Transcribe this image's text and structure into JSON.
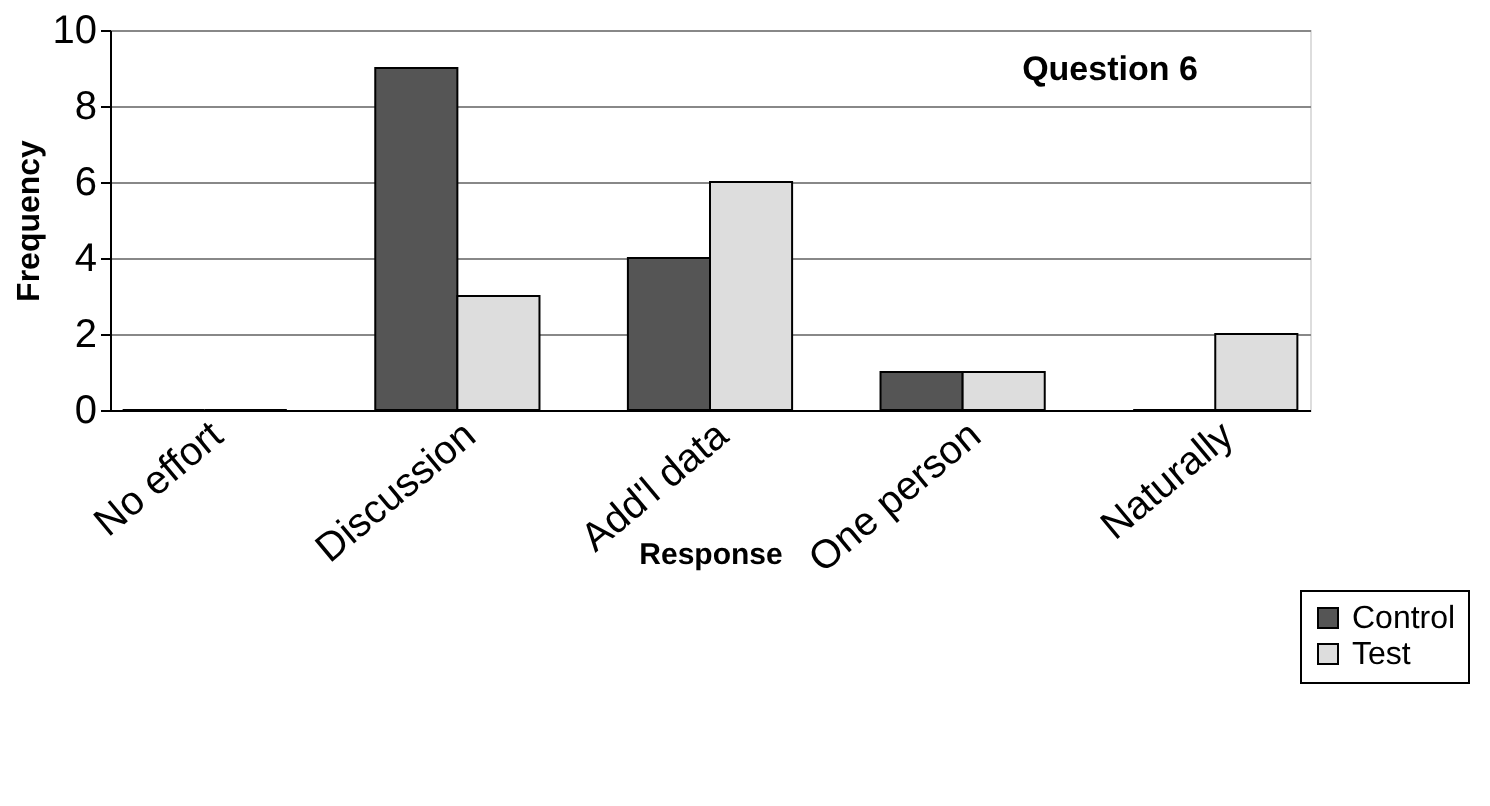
{
  "chart_data": {
    "type": "bar",
    "title": "Question 6",
    "xlabel": "Response",
    "ylabel": "Frequency",
    "categories": [
      "No effort",
      "Discussion",
      "Add'l data",
      "One person",
      "Naturally"
    ],
    "series": [
      {
        "name": "Control",
        "color": "#555555",
        "values": [
          0,
          9,
          4,
          1,
          0
        ]
      },
      {
        "name": "Test",
        "color": "#dddddd",
        "values": [
          0,
          3,
          6,
          1,
          2
        ]
      }
    ],
    "ylim": [
      0,
      10
    ],
    "yticks": [
      0,
      2,
      4,
      6,
      8,
      10
    ],
    "grid": "y",
    "legend": "bottom right"
  }
}
